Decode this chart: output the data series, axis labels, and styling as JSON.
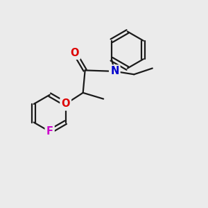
{
  "bg_color": "#ebebeb",
  "bond_color": "#1a1a1a",
  "bond_width": 1.6,
  "atom_colors": {
    "O": "#dd0000",
    "N": "#0000cc",
    "F": "#cc00cc",
    "C": "#1a1a1a"
  },
  "font_size_atom": 10.5
}
